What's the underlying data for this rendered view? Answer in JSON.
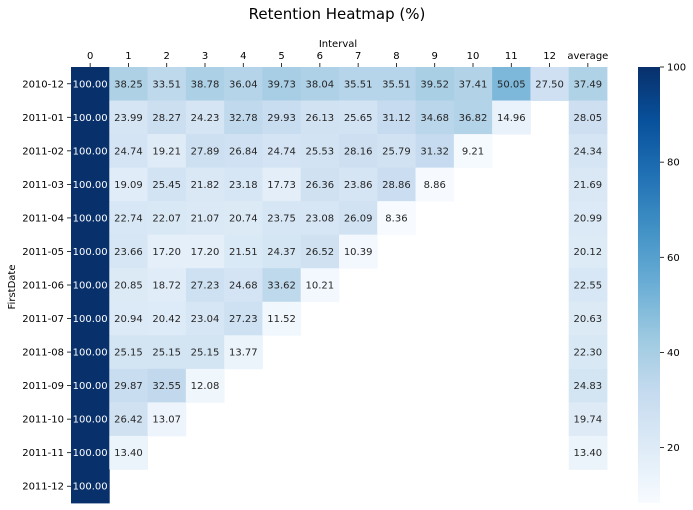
{
  "chart_data": {
    "type": "heatmap",
    "title": "Retention Heatmap (%)",
    "xlabel": "Interval",
    "ylabel": "FirstDate",
    "x_position": "top",
    "columns": [
      "0",
      "1",
      "2",
      "3",
      "4",
      "5",
      "6",
      "7",
      "8",
      "9",
      "10",
      "11",
      "12",
      "average"
    ],
    "rows": [
      "2010-12",
      "2011-01",
      "2011-02",
      "2011-03",
      "2011-04",
      "2011-05",
      "2011-06",
      "2011-07",
      "2011-08",
      "2011-09",
      "2011-10",
      "2011-11",
      "2011-12"
    ],
    "values": [
      [
        100.0,
        38.25,
        33.51,
        38.78,
        36.04,
        39.73,
        38.04,
        35.51,
        35.51,
        39.52,
        37.41,
        50.05,
        27.5,
        37.49
      ],
      [
        100.0,
        23.99,
        28.27,
        24.23,
        32.78,
        29.93,
        26.13,
        25.65,
        31.12,
        34.68,
        36.82,
        14.96,
        null,
        28.05
      ],
      [
        100.0,
        24.74,
        19.21,
        27.89,
        26.84,
        24.74,
        25.53,
        28.16,
        25.79,
        31.32,
        9.21,
        null,
        null,
        24.34
      ],
      [
        100.0,
        19.09,
        25.45,
        21.82,
        23.18,
        17.73,
        26.36,
        23.86,
        28.86,
        8.86,
        null,
        null,
        null,
        21.69
      ],
      [
        100.0,
        22.74,
        22.07,
        21.07,
        20.74,
        23.75,
        23.08,
        26.09,
        8.36,
        null,
        null,
        null,
        null,
        20.99
      ],
      [
        100.0,
        23.66,
        17.2,
        17.2,
        21.51,
        24.37,
        26.52,
        10.39,
        null,
        null,
        null,
        null,
        null,
        20.12
      ],
      [
        100.0,
        20.85,
        18.72,
        27.23,
        24.68,
        33.62,
        10.21,
        null,
        null,
        null,
        null,
        null,
        null,
        22.55
      ],
      [
        100.0,
        20.94,
        20.42,
        23.04,
        27.23,
        11.52,
        null,
        null,
        null,
        null,
        null,
        null,
        null,
        20.63
      ],
      [
        100.0,
        25.15,
        25.15,
        25.15,
        13.77,
        null,
        null,
        null,
        null,
        null,
        null,
        null,
        null,
        22.3
      ],
      [
        100.0,
        29.87,
        32.55,
        12.08,
        null,
        null,
        null,
        null,
        null,
        null,
        null,
        null,
        null,
        24.83
      ],
      [
        100.0,
        26.42,
        13.07,
        null,
        null,
        null,
        null,
        null,
        null,
        null,
        null,
        null,
        null,
        19.74
      ],
      [
        100.0,
        13.4,
        null,
        null,
        null,
        null,
        null,
        null,
        null,
        null,
        null,
        null,
        null,
        13.4
      ],
      [
        100.0,
        null,
        null,
        null,
        null,
        null,
        null,
        null,
        null,
        null,
        null,
        null,
        null,
        null
      ]
    ],
    "colormap": "Blues",
    "vmin": 8.36,
    "vmax": 100,
    "colorbar_ticks": [
      20,
      40,
      60,
      80,
      100
    ],
    "annotation_format": "0.00"
  }
}
